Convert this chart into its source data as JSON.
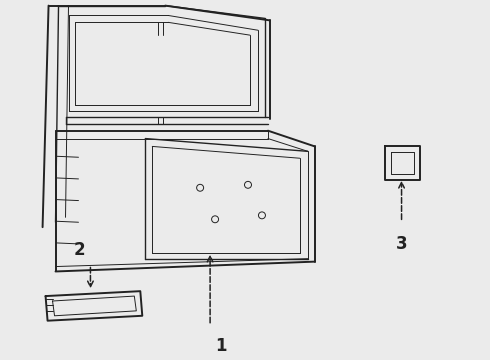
{
  "bg_color": "#ebebeb",
  "line_color": "#222222",
  "labels": [
    "1",
    "2",
    "3"
  ],
  "lw_thick": 1.4,
  "lw_med": 1.0,
  "lw_thin": 0.7
}
